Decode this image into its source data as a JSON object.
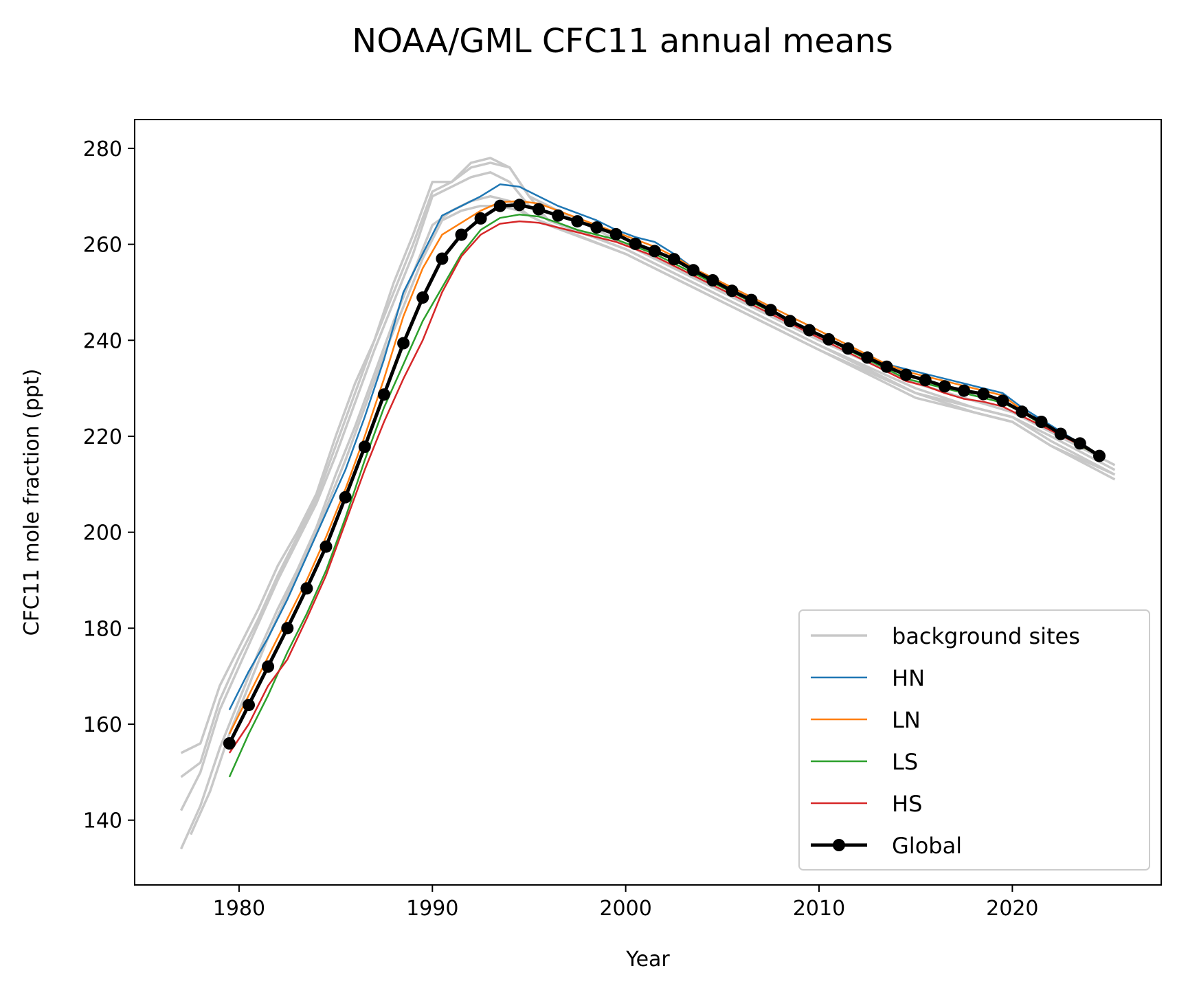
{
  "chart_data": {
    "type": "line",
    "title": "NOAA/GML CFC11 annual means",
    "xlabel": "Year",
    "ylabel": "CFC11 mole fraction (ppt)",
    "xlim": [
      1974.6,
      2027.7
    ],
    "ylim": [
      126.5,
      286
    ],
    "xticks": [
      1980,
      1990,
      2000,
      2010,
      2020
    ],
    "yticks": [
      140,
      160,
      180,
      200,
      220,
      240,
      260,
      280
    ],
    "grid": false,
    "legend_position": "lower right",
    "colors": {
      "background_sites": "#c8c8c8",
      "HN": "#1f77b4",
      "LN": "#ff7f0e",
      "LS": "#2ca02c",
      "HS": "#d62728",
      "Global": "#000000"
    },
    "background_series": [
      {
        "x": [
          1977.0,
          1978.0,
          1979.0,
          1980.0,
          1981.0,
          1982.0,
          1983.0,
          1984.0,
          1985.0,
          1986.0,
          1987.0,
          1988.0,
          1989.0,
          1990.0,
          1991.0,
          1992.0,
          1993.0,
          1994.0,
          1995.0,
          1996.0,
          2000.0,
          2005.0,
          2010.0,
          2015.0,
          2018.0,
          2020.0,
          2022.0,
          2025.3
        ],
        "y": [
          154,
          156,
          168,
          176,
          184,
          193,
          200,
          208,
          220,
          231,
          240,
          252,
          262,
          273,
          273,
          277,
          278,
          276,
          270,
          265,
          259,
          249,
          239,
          230,
          226,
          224,
          220,
          213
        ]
      },
      {
        "x": [
          1977.0,
          1978.0,
          1979.0,
          1980.0,
          1981.0,
          1982.0,
          1983.0,
          1984.0,
          1985.0,
          1986.0,
          1987.0,
          1988.0,
          1989.0,
          1990.0,
          1991.0,
          1992.0,
          1993.0,
          1994.0,
          1995.0,
          1996.0,
          2000.0,
          2005.0,
          2010.0,
          2015.0,
          2018.0,
          2020.0,
          2022.0,
          2025.3
        ],
        "y": [
          142,
          150,
          163,
          172,
          181,
          190,
          198,
          206,
          216,
          227,
          238,
          248,
          258,
          270,
          272,
          274,
          275,
          273,
          268,
          265,
          259,
          249,
          239,
          229,
          226,
          224,
          219,
          212
        ]
      },
      {
        "x": [
          1977.0,
          1978.0,
          1979.0,
          1980.0,
          1981.0,
          1982.0,
          1983.0,
          1984.0,
          1985.0,
          1986.0,
          1987.0,
          1988.0,
          1989.0,
          1990.0,
          1991.0,
          1992.0,
          1993.0,
          1994.0,
          1995.0,
          1996.0,
          2000.0,
          2005.0,
          2010.0,
          2015.0,
          2018.0,
          2020.0,
          2022.0,
          2025.3
        ],
        "y": [
          134,
          143,
          155,
          165,
          175,
          184,
          192,
          201,
          212,
          222,
          233,
          244,
          254,
          264,
          267,
          269,
          270,
          269,
          266,
          264,
          258,
          248,
          238,
          229,
          225,
          223,
          218,
          211
        ]
      },
      {
        "x": [
          1977.5,
          1978.5,
          1979.5,
          1980.5,
          1981.5,
          1982.5,
          1983.5,
          1984.5,
          1985.5,
          1986.5,
          1987.5,
          1988.5,
          1989.5,
          1990.5,
          1991.5,
          1992.5,
          1993.5,
          1994.5,
          1995.5,
          2000.0,
          2005.0,
          2010.0,
          2015.0,
          2018.0,
          2020.0,
          2022.0,
          2025.3
        ],
        "y": [
          137,
          146,
          158,
          168,
          178,
          187,
          196,
          205,
          215,
          226,
          237,
          247,
          257,
          265,
          267,
          268,
          268,
          267,
          265,
          258,
          248,
          238,
          228,
          225,
          223,
          218,
          212
        ]
      },
      {
        "x": [
          1977.0,
          1978.0,
          1979.0,
          1980.0,
          1981.0,
          1982.0,
          1983.0,
          1984.0,
          1985.0,
          1986.0,
          1987.0,
          1988.0,
          1989.0,
          1990.0,
          1991.0,
          1992.0,
          1993.0,
          1994.0,
          1995.0,
          2000.0,
          2005.0,
          2010.0,
          2015.0,
          2020.0,
          2025.3
        ],
        "y": [
          149,
          152,
          165,
          174,
          182,
          191,
          199,
          207,
          218,
          229,
          240,
          250,
          260,
          271,
          273,
          276,
          277,
          276,
          270,
          260,
          250,
          240,
          231,
          225,
          214
        ]
      }
    ],
    "series": [
      {
        "name": "HN",
        "color": "#1f77b4",
        "x": [
          1979.5,
          1980.5,
          1981.5,
          1982.5,
          1983.5,
          1984.5,
          1985.5,
          1986.5,
          1987.5,
          1988.5,
          1989.5,
          1990.5,
          1991.5,
          1992.5,
          1993.5,
          1994.5,
          1995.5,
          1996.5,
          1997.5,
          1998.5,
          1999.5,
          2000.5,
          2001.5,
          2002.5,
          2003.5,
          2004.5,
          2005.5,
          2006.5,
          2007.5,
          2008.5,
          2009.5,
          2010.5,
          2011.5,
          2012.5,
          2013.5,
          2014.5,
          2015.5,
          2016.5,
          2017.5,
          2018.5,
          2019.5,
          2020.5,
          2021.5,
          2022.5,
          2023.5,
          2024.5
        ],
        "y": [
          163,
          171,
          178,
          186,
          195,
          204,
          213,
          224,
          236,
          250,
          258,
          266,
          268,
          270,
          272.5,
          272,
          270,
          268,
          266.5,
          265,
          263,
          261.5,
          260.5,
          258,
          255,
          253,
          251,
          249,
          247,
          245,
          243,
          241,
          239,
          237,
          235,
          234,
          233,
          232,
          231,
          230,
          229,
          226,
          223.5,
          221,
          218.5,
          216
        ]
      },
      {
        "name": "LN",
        "color": "#ff7f0e",
        "x": [
          1979.5,
          1980.5,
          1981.5,
          1982.5,
          1983.5,
          1984.5,
          1985.5,
          1986.5,
          1987.5,
          1988.5,
          1989.5,
          1990.5,
          1991.5,
          1992.5,
          1993.5,
          1994.5,
          1995.5,
          1996.5,
          1997.5,
          1998.5,
          1999.5,
          2000.5,
          2001.5,
          2002.5,
          2003.5,
          2004.5,
          2005.5,
          2006.5,
          2007.5,
          2008.5,
          2009.5,
          2010.5,
          2011.5,
          2012.5,
          2013.5,
          2014.5,
          2015.5,
          2016.5,
          2017.5,
          2018.5,
          2019.5,
          2020.5,
          2021.5,
          2022.5,
          2023.5,
          2024.5
        ],
        "y": [
          158,
          166,
          174,
          182,
          190,
          199,
          209,
          220,
          232,
          245,
          255,
          262,
          264.5,
          267,
          268.8,
          269,
          268.5,
          267,
          265.5,
          264,
          262.5,
          261,
          259.5,
          257.5,
          255,
          253,
          251,
          249,
          247,
          245,
          243,
          241,
          239,
          237,
          235,
          233.5,
          232.5,
          231.5,
          230.5,
          229.5,
          228.5,
          225.5,
          223,
          220.5,
          218.5,
          216
        ]
      },
      {
        "name": "LS",
        "color": "#2ca02c",
        "x": [
          1979.5,
          1980.5,
          1981.5,
          1982.5,
          1983.5,
          1984.5,
          1985.5,
          1986.5,
          1987.5,
          1988.5,
          1989.5,
          1990.5,
          1991.5,
          1992.5,
          1993.5,
          1994.5,
          1995.5,
          1996.5,
          1997.5,
          1998.5,
          1999.5,
          2000.5,
          2001.5,
          2002.5,
          2003.5,
          2004.5,
          2005.5,
          2006.5,
          2007.5,
          2008.5,
          2009.5,
          2010.5,
          2011.5,
          2012.5,
          2013.5,
          2014.5,
          2015.5,
          2016.5,
          2017.5,
          2018.5,
          2019.5,
          2020.5,
          2021.5,
          2022.5,
          2023.5,
          2024.5
        ],
        "y": [
          149,
          158,
          166,
          175,
          183,
          192,
          203,
          215,
          226,
          235,
          244,
          251,
          258,
          263,
          265.5,
          266.2,
          265.8,
          264.5,
          263,
          262,
          261,
          259.5,
          258,
          256,
          254,
          252,
          250,
          248,
          246,
          244,
          242,
          240,
          238,
          236,
          234,
          232,
          231,
          230,
          229,
          228,
          227,
          225,
          222.5,
          220.5,
          218,
          216
        ]
      },
      {
        "name": "HS",
        "color": "#d62728",
        "x": [
          1979.5,
          1980.5,
          1981.5,
          1982.5,
          1983.5,
          1984.5,
          1985.5,
          1986.5,
          1987.5,
          1988.5,
          1989.5,
          1990.5,
          1991.5,
          1992.5,
          1993.5,
          1994.5,
          1995.5,
          1996.5,
          1997.5,
          1998.5,
          1999.5,
          2000.5,
          2001.5,
          2002.5,
          2003.5,
          2004.5,
          2005.5,
          2006.5,
          2007.5,
          2008.5,
          2009.5,
          2010.5,
          2011.5,
          2012.5,
          2013.5,
          2014.5,
          2015.5,
          2016.5,
          2017.5,
          2018.5,
          2019.5,
          2020.5,
          2021.5,
          2022.5,
          2023.5,
          2024.5
        ],
        "y": [
          154,
          160,
          168,
          173.5,
          182,
          191,
          202,
          213,
          223,
          232,
          240,
          250,
          257.5,
          262,
          264.3,
          264.8,
          264.5,
          263.5,
          262.5,
          261.5,
          260.5,
          259,
          257.5,
          255.5,
          253.5,
          251.5,
          249.5,
          247.5,
          245.5,
          243.5,
          241.5,
          239.5,
          237.5,
          235.5,
          233.5,
          231.5,
          230.5,
          229,
          227.8,
          227.2,
          226.2,
          224.2,
          222.2,
          220.2,
          218.2,
          215.8
        ]
      },
      {
        "name": "Global",
        "color": "#000000",
        "x": [
          1979.5,
          1980.5,
          1981.5,
          1982.5,
          1983.5,
          1984.5,
          1985.5,
          1986.5,
          1987.5,
          1988.5,
          1989.5,
          1990.5,
          1991.5,
          1992.5,
          1993.5,
          1994.5,
          1995.5,
          1996.5,
          1997.5,
          1998.5,
          1999.5,
          2000.5,
          2001.5,
          2002.5,
          2003.5,
          2004.5,
          2005.5,
          2006.5,
          2007.5,
          2008.5,
          2009.5,
          2010.5,
          2011.5,
          2012.5,
          2013.5,
          2014.5,
          2015.5,
          2016.5,
          2017.5,
          2018.5,
          2019.5,
          2020.5,
          2021.5,
          2022.5,
          2023.5,
          2024.5
        ],
        "y": [
          156,
          164,
          172,
          180,
          188.3,
          197,
          207.3,
          217.8,
          228.7,
          239.4,
          248.9,
          257,
          262,
          265.4,
          268,
          268.2,
          267.3,
          266,
          264.8,
          263.5,
          262.1,
          260.1,
          258.6,
          256.9,
          254.6,
          252.5,
          250.3,
          248.4,
          246.3,
          244,
          242.1,
          240.2,
          238.3,
          236.4,
          234.5,
          232.8,
          231.7,
          230.4,
          229.5,
          228.8,
          227.4,
          225.1,
          223,
          220.5,
          218.5,
          215.9
        ]
      }
    ],
    "legend": [
      "background sites",
      "HN",
      "LN",
      "LS",
      "HS",
      "Global"
    ]
  }
}
